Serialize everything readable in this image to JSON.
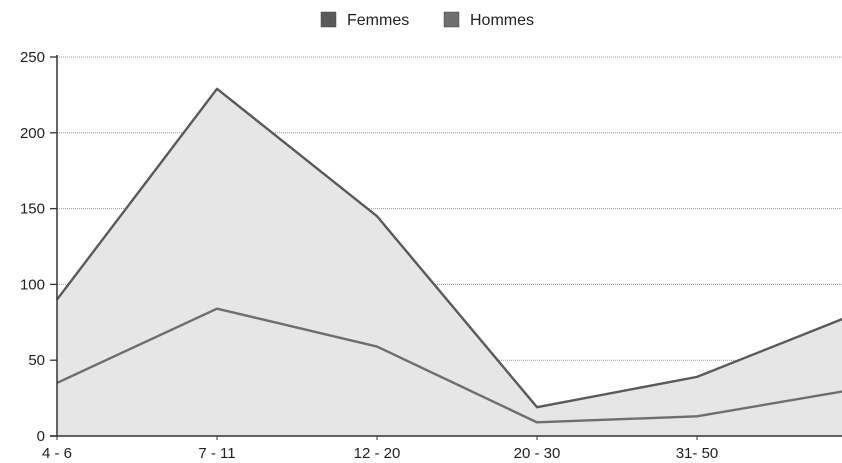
{
  "chart_data": {
    "type": "area",
    "categories": [
      "4 - 6",
      "7 - 11",
      "12 - 20",
      "20 - 30",
      "31- 50",
      ""
    ],
    "series": [
      {
        "name": "Femmes",
        "values": [
          90,
          229,
          145,
          19,
          39,
          81
        ],
        "color": "#5a5a5a"
      },
      {
        "name": "Hommes",
        "values": [
          35,
          84,
          59,
          9,
          13,
          31
        ],
        "color": "#6e6e6e"
      }
    ],
    "title": "",
    "xlabel": "",
    "ylabel": "",
    "ylim": [
      0,
      250
    ],
    "yticks": [
      0,
      50,
      100,
      150,
      200,
      250
    ],
    "grid": true,
    "legend_position": "top-center",
    "colors": {
      "fill": "#e6e6e6",
      "grid": "#9a9a9a",
      "axis": "#333333"
    }
  }
}
